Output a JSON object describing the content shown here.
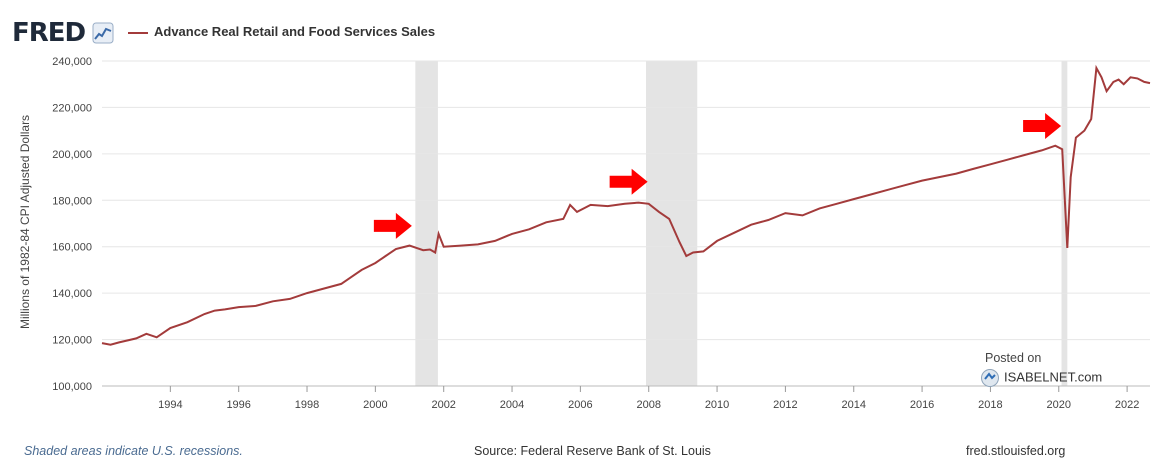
{
  "header": {
    "logo": "FRED",
    "logo_icon": "chart-line-icon"
  },
  "chart_data": {
    "type": "line",
    "title": "",
    "ylabel": "Millions of 1982-84 CPI Adjusted Dollars",
    "xlabel": "",
    "ylim": [
      100000,
      240000
    ],
    "xlim": [
      1992.0,
      2022.67
    ],
    "y_ticks": [
      "100,000",
      "120,000",
      "140,000",
      "160,000",
      "180,000",
      "200,000",
      "220,000",
      "240,000"
    ],
    "x_ticks": [
      "1994",
      "1996",
      "1998",
      "2000",
      "2002",
      "2004",
      "2006",
      "2008",
      "2010",
      "2012",
      "2014",
      "2016",
      "2018",
      "2020",
      "2022"
    ],
    "grid": true,
    "legend_position": "top-left",
    "colors": {
      "series": "#a33b3b",
      "recession": "#e4e4e4",
      "arrow": "#ff0000"
    },
    "recessions": [
      [
        2001.17,
        2001.83
      ],
      [
        2007.92,
        2009.42
      ],
      [
        2020.08,
        2020.25
      ]
    ],
    "arrows_at": [
      {
        "x": 2000.6,
        "y": 169000
      },
      {
        "x": 2007.5,
        "y": 188000
      },
      {
        "x": 2019.6,
        "y": 212000
      }
    ],
    "series": [
      {
        "name": "Advance Real Retail and Food Services Sales",
        "x": [
          1992.0,
          1992.25,
          1992.5,
          1993.0,
          1993.3,
          1993.6,
          1994.0,
          1994.5,
          1995.0,
          1995.3,
          1995.6,
          1996.0,
          1996.5,
          1997.0,
          1997.5,
          1998.0,
          1998.5,
          1999.0,
          1999.3,
          1999.6,
          2000.0,
          2000.3,
          2000.6,
          2001.0,
          2001.4,
          2001.6,
          2001.75,
          2001.85,
          2002.0,
          2002.5,
          2003.0,
          2003.5,
          2004.0,
          2004.5,
          2005.0,
          2005.5,
          2005.7,
          2005.9,
          2006.3,
          2006.8,
          2007.3,
          2007.7,
          2008.0,
          2008.3,
          2008.6,
          2008.9,
          2009.1,
          2009.3,
          2009.6,
          2010.0,
          2010.5,
          2011.0,
          2011.5,
          2012.0,
          2012.5,
          2013.0,
          2013.5,
          2014.0,
          2014.5,
          2015.0,
          2015.5,
          2016.0,
          2016.5,
          2017.0,
          2017.5,
          2018.0,
          2018.5,
          2019.0,
          2019.5,
          2019.9,
          2020.1,
          2020.25,
          2020.35,
          2020.5,
          2020.75,
          2020.95,
          2021.1,
          2021.25,
          2021.4,
          2021.6,
          2021.75,
          2021.9,
          2022.1,
          2022.3,
          2022.5,
          2022.67
        ],
        "values": [
          118500,
          117800,
          118800,
          120500,
          122500,
          121000,
          125000,
          127500,
          131000,
          132500,
          133000,
          134000,
          134500,
          136500,
          137500,
          140000,
          142000,
          144000,
          147000,
          150000,
          153000,
          156000,
          159000,
          160500,
          158500,
          158800,
          157500,
          165500,
          160000,
          160500,
          161000,
          162500,
          165500,
          167500,
          170500,
          172000,
          178000,
          175000,
          178000,
          177500,
          178500,
          179000,
          178500,
          175000,
          172000,
          162000,
          156000,
          157500,
          158000,
          162500,
          166000,
          169500,
          171500,
          174500,
          173500,
          176500,
          178500,
          180500,
          182500,
          184500,
          186500,
          188500,
          190000,
          191500,
          193500,
          195500,
          197500,
          199500,
          201500,
          203500,
          202000,
          159500,
          190000,
          207000,
          210000,
          215000,
          237000,
          233000,
          227000,
          231000,
          232000,
          230000,
          233000,
          232500,
          231000,
          230500
        ]
      }
    ]
  },
  "annotations": {
    "posted_on": "Posted on",
    "isabelnet": "ISABELNET.com"
  },
  "footer": {
    "recession_note": "Shaded areas indicate U.S. recessions.",
    "source": "Source: Federal Reserve Bank of St. Louis",
    "site": "fred.stlouisfed.org"
  }
}
